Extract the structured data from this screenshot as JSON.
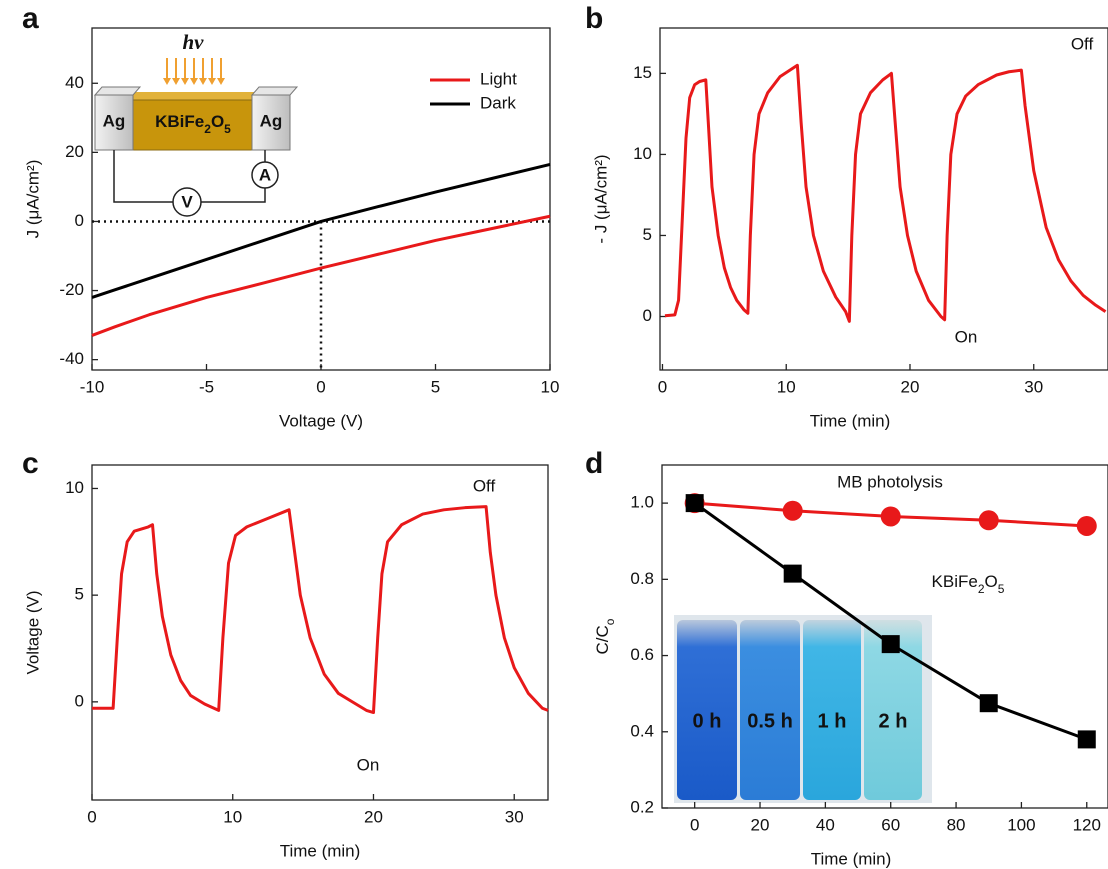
{
  "chart_data": [
    {
      "panel": "a",
      "type": "line",
      "xlabel": "Voltage (V)",
      "ylabel": "J (μA/cm²)",
      "x": [
        -10,
        -9,
        -7.5,
        -5,
        -2.5,
        0,
        2.5,
        5,
        7.5,
        10
      ],
      "series": [
        {
          "name": "Light",
          "color": "#e8191a",
          "values": [
            -33,
            -30.5,
            -27,
            -22,
            -17.8,
            -13.5,
            -9.5,
            -5.5,
            -2,
            1.5
          ]
        },
        {
          "name": "Dark",
          "color": "#000000",
          "values": [
            -22,
            -19.8,
            -16.5,
            -11,
            -5.5,
            0,
            4.3,
            8.5,
            12.5,
            16.5
          ]
        }
      ],
      "legend": "upper right",
      "crosshair": [
        0,
        0
      ],
      "xlim": [
        -10,
        10
      ],
      "ylim": [
        -43,
        56
      ],
      "xticks": [
        -10,
        -5,
        0,
        5,
        10
      ],
      "yticks": [
        -40,
        -20,
        0,
        20,
        40
      ],
      "inset": {
        "light": "hν",
        "electrodes": [
          "Ag",
          "Ag"
        ],
        "material": [
          "KBiFe",
          "2",
          "O",
          "5"
        ],
        "meters": [
          "V",
          "A"
        ]
      }
    },
    {
      "panel": "b",
      "type": "line",
      "xlabel": "Time (min)",
      "ylabel": "- J (μA/cm²)",
      "x": [
        0.2,
        1.0,
        1.3,
        1.6,
        1.9,
        2.2,
        2.6,
        3.0,
        3.5,
        3.7,
        4.0,
        4.5,
        5.0,
        5.5,
        6.0,
        6.6,
        6.9,
        7.1,
        7.4,
        7.8,
        8.5,
        9.5,
        10.5,
        10.9,
        11.2,
        11.6,
        12.2,
        13,
        14,
        14.8,
        15.1,
        15.3,
        15.6,
        16.0,
        16.8,
        17.8,
        18.5,
        18.8,
        19.2,
        19.8,
        20.5,
        21.5,
        22.5,
        22.8,
        23.0,
        23.3,
        23.8,
        24.5,
        25.5,
        27,
        28,
        29,
        29.3,
        30,
        31,
        32,
        33,
        34,
        35,
        35.8
      ],
      "series": [
        {
          "color": "#e8191a",
          "values": [
            0.05,
            0.1,
            1.0,
            6,
            11,
            13.5,
            14.3,
            14.5,
            14.6,
            12,
            8,
            5,
            3,
            1.8,
            1.0,
            0.4,
            0.2,
            5,
            10,
            12.5,
            13.8,
            14.8,
            15.3,
            15.5,
            12,
            8,
            5,
            2.8,
            1.2,
            0.3,
            -0.3,
            5,
            10,
            12.5,
            13.8,
            14.6,
            15.0,
            12,
            8,
            5,
            2.8,
            1.0,
            0.0,
            -0.2,
            5,
            10,
            12.5,
            13.6,
            14.3,
            14.9,
            15.1,
            15.2,
            13,
            9,
            5.5,
            3.5,
            2.2,
            1.3,
            0.7,
            0.3
          ]
        }
      ],
      "annotations": [
        "Off",
        "On"
      ],
      "xlim": [
        -0.2,
        36
      ],
      "ylim": [
        -3.3,
        17.8
      ],
      "xticks": [
        0,
        10,
        20,
        30
      ],
      "yticks": [
        0,
        5,
        10,
        15
      ]
    },
    {
      "panel": "c",
      "type": "line",
      "xlabel": "Time (min)",
      "ylabel": "Voltage (V)",
      "x": [
        0,
        1.5,
        1.8,
        2.1,
        2.5,
        3.0,
        3.5,
        4.0,
        4.3,
        4.6,
        5.0,
        5.6,
        6.3,
        7.0,
        8.0,
        9.0,
        9.3,
        9.7,
        10.2,
        11.0,
        12.5,
        14.0,
        14.4,
        14.8,
        15.5,
        16.5,
        17.5,
        18.5,
        19.5,
        20.0,
        20.3,
        20.6,
        21.0,
        22,
        23.5,
        25,
        26.5,
        28,
        28.3,
        28.7,
        29.3,
        30,
        31,
        32,
        32.4
      ],
      "series": [
        {
          "color": "#e8191a",
          "values": [
            -0.3,
            -0.3,
            3,
            6,
            7.5,
            8.0,
            8.1,
            8.2,
            8.3,
            6,
            4,
            2.2,
            1.0,
            0.3,
            -0.1,
            -0.4,
            3,
            6.5,
            7.8,
            8.2,
            8.6,
            9.0,
            7,
            5,
            3,
            1.3,
            0.4,
            0.0,
            -0.4,
            -0.5,
            3,
            6,
            7.5,
            8.3,
            8.8,
            9.0,
            9.1,
            9.15,
            7,
            5,
            3,
            1.6,
            0.4,
            -0.3,
            -0.4
          ]
        }
      ],
      "annotations": [
        "Off",
        "On"
      ],
      "xlim": [
        0,
        32.4
      ],
      "ylim": [
        -4.6,
        11.1
      ],
      "xticks": [
        0,
        10,
        20,
        30
      ],
      "yticks": [
        0,
        5,
        10
      ]
    },
    {
      "panel": "d",
      "type": "line",
      "xlabel": "Time (min)",
      "ylabel": [
        "C/C",
        "o"
      ],
      "x": [
        0,
        30,
        60,
        90,
        120
      ],
      "series": [
        {
          "color": "#e8191a",
          "marker": "circle",
          "values": [
            1.0,
            0.98,
            0.965,
            0.955,
            0.94
          ]
        },
        {
          "color": "#000000",
          "marker": "square",
          "values": [
            1.0,
            0.815,
            0.63,
            0.475,
            0.38
          ]
        }
      ],
      "annotations": [
        "MB photolysis",
        [
          "KBiFe",
          "2",
          "O",
          "5"
        ]
      ],
      "inset_labels": [
        "0 h",
        "0.5 h",
        "1 h",
        "2 h"
      ],
      "xlim": [
        -10,
        126.5
      ],
      "ylim": [
        0.2,
        1.1
      ],
      "xticks": [
        0,
        20,
        40,
        60,
        80,
        100,
        120
      ],
      "yticks": [
        {
          "value": 1.0,
          "label": "1.0"
        },
        0.8,
        0.6,
        0.4,
        0.2
      ]
    }
  ]
}
